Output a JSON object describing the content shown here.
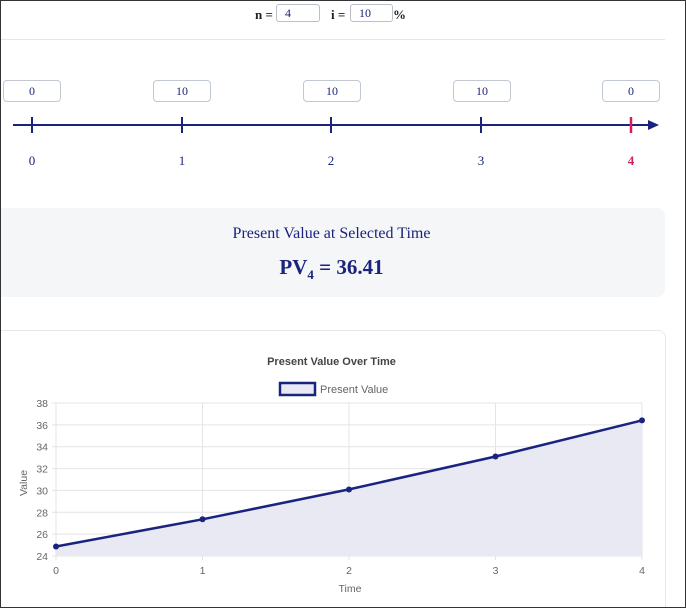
{
  "params": {
    "n_label": "n =",
    "n_value": "4",
    "i_label": "i =",
    "i_value": "10",
    "i_unit": "%"
  },
  "timeline": {
    "cash_flows": [
      "0",
      "10",
      "10",
      "10",
      "0"
    ],
    "periods": [
      "0",
      "1",
      "2",
      "3",
      "4"
    ],
    "selected_period": "4",
    "colors": {
      "line": "#1a237e",
      "selected": "#d81b60"
    }
  },
  "present_value": {
    "title": "Present Value at Selected Time",
    "label": "PV",
    "subscript": "4",
    "equals": "= 36.41"
  },
  "chart_title": "Present Value Over Time",
  "chart_data": {
    "type": "area",
    "title": "Present Value Over Time",
    "xlabel": "Time",
    "ylabel": "Value",
    "x": [
      0,
      1,
      2,
      3,
      4
    ],
    "series": [
      {
        "name": "Present Value",
        "values": [
          24.87,
          27.36,
          30.09,
          33.1,
          36.41
        ],
        "color": "#1a237e",
        "fill": "#e8e9f3"
      }
    ],
    "xticks": [
      "0",
      "1",
      "2",
      "3",
      "4"
    ],
    "yticks": [
      "24",
      "26",
      "28",
      "30",
      "32",
      "34",
      "36",
      "38"
    ],
    "ylim": [
      24,
      38
    ],
    "xlim": [
      0,
      4
    ],
    "grid": true,
    "legend": "top"
  }
}
